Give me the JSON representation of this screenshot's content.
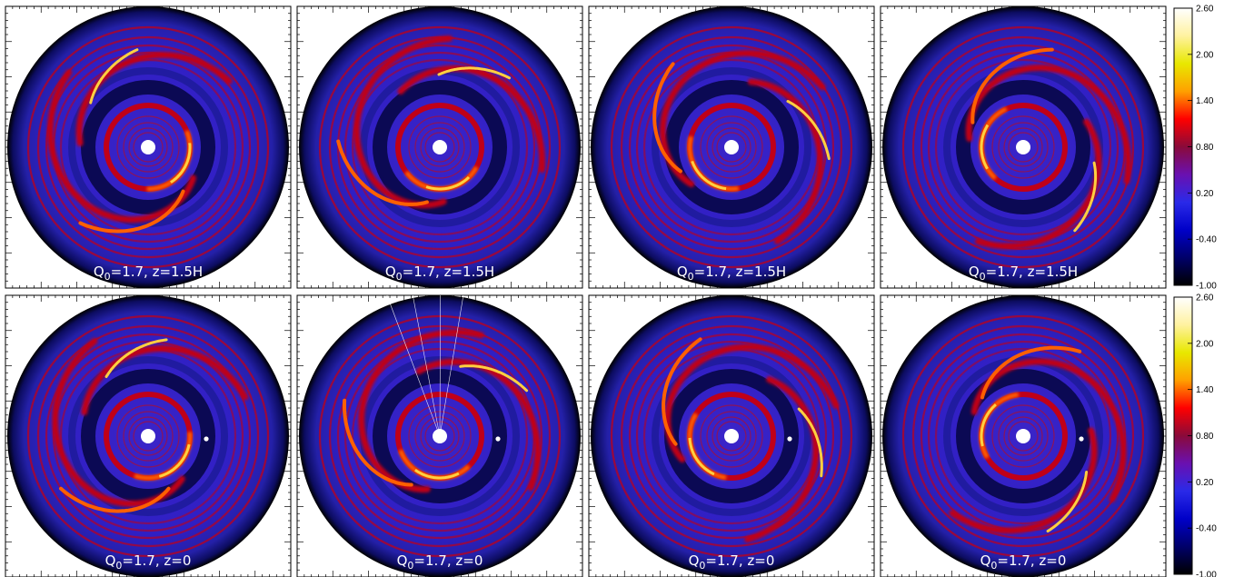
{
  "figure": {
    "rows": [
      {
        "name": "top-row",
        "panels": [
          {
            "label_main": "Q",
            "label_sub": "0",
            "label_rest": "=1.7, z=1.5H",
            "phase": 0.0,
            "planet": false,
            "rays": false
          },
          {
            "label_main": "Q",
            "label_sub": "0",
            "label_rest": "=1.7, z=1.5H",
            "phase": 0.9,
            "planet": false,
            "rays": false
          },
          {
            "label_main": "Q",
            "label_sub": "0",
            "label_rest": "=1.7, z=1.5H",
            "phase": 1.8,
            "planet": false,
            "rays": false
          },
          {
            "label_main": "Q",
            "label_sub": "0",
            "label_rest": "=1.7, z=1.5H",
            "phase": 2.7,
            "planet": false,
            "rays": false
          }
        ]
      },
      {
        "name": "bottom-row",
        "panels": [
          {
            "label_main": "Q",
            "label_sub": "0",
            "label_rest": "=1.7, z=0",
            "phase": 0.3,
            "planet": true,
            "rays": false
          },
          {
            "label_main": "Q",
            "label_sub": "0",
            "label_rest": "=1.7, z=0",
            "phase": 1.2,
            "planet": true,
            "rays": true
          },
          {
            "label_main": "Q",
            "label_sub": "0",
            "label_rest": "=1.7, z=0",
            "phase": 2.1,
            "planet": true,
            "rays": false
          },
          {
            "label_main": "Q",
            "label_sub": "0",
            "label_rest": "=1.7, z=0",
            "phase": 3.0,
            "planet": true,
            "rays": false
          }
        ]
      }
    ],
    "colorbar": {
      "ticks": [
        "2.60",
        "2.00",
        "1.40",
        "0.80",
        "0.20",
        "-0.40",
        "-1.00"
      ],
      "colors": [
        "#ffffff",
        "#fff2a0",
        "#e8e800",
        "#ffa000",
        "#ff0000",
        "#8a0a3a",
        "#6a10b0",
        "#2a2ae8",
        "#0000c8",
        "#00006a",
        "#000000"
      ]
    },
    "disk_colors": {
      "background": "#2f1fc4",
      "outer_edge": "#000000",
      "dark_band": "#050540",
      "ring": "#c00018",
      "bright_ring": "#ff6000",
      "hot_ring": "#ffd040",
      "center_hole": "#ffffff"
    }
  }
}
